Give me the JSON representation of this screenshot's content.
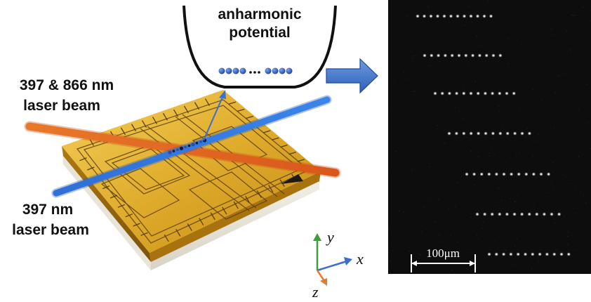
{
  "figure": {
    "potential_label_line1": "anharmonic",
    "potential_label_line2": "potential",
    "laser_orange_line1": "397 & 866 nm",
    "laser_orange_line2": "laser beam",
    "laser_blue_line1": "397 nm",
    "laser_blue_line2": "laser beam",
    "axis_x": "x",
    "axis_y": "y",
    "axis_z": "z",
    "scale_bar_label": "100μm"
  },
  "colors": {
    "gold": "#d9a62a",
    "laser_orange": "#e26a1f",
    "laser_blue": "#2f6fd6",
    "ion_blue": "#2b4fa8",
    "arrow_blue": "#4472c4",
    "axis_green": "#3e9d3e",
    "axis_orange": "#e47b2a",
    "panel_bg": "#0d0d0d"
  },
  "ion_images": {
    "rows": 7,
    "ion_counts": [
      12,
      12,
      12,
      12,
      12,
      12,
      12
    ]
  }
}
